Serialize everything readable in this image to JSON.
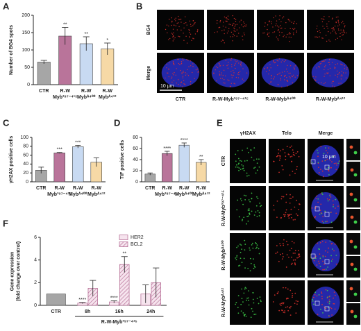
{
  "chart_data": [
    {
      "type": "bar",
      "panel": "A",
      "ylabel": [
        "Number of BG4 spots"
      ],
      "categories": [
        "CTR",
        [
          "R₇W",
          "Myb³⁹⁷⁻⁴¹⁵"
        ],
        [
          "R₇W",
          "Mybᴬ⁴⁰⁰"
        ],
        [
          "R₇W",
          "Mybᴬ⁴¹²"
        ]
      ],
      "values": [
        65,
        140,
        118,
        103
      ],
      "errors": [
        5,
        25,
        20,
        17
      ],
      "annotations": [
        null,
        "**",
        "**",
        "*"
      ],
      "colors": [
        "#a6a6a6",
        "#b9749a",
        "#c8daf2",
        "#f6d9a6"
      ],
      "ylim": [
        0,
        200
      ],
      "yticks": [
        0,
        50,
        100,
        150,
        200
      ]
    },
    {
      "type": "bar",
      "panel": "C",
      "ylabel": [
        "γH2AX positive cells"
      ],
      "categories": [
        "CTR",
        [
          "R₇W",
          "Myb³⁹⁷⁻⁴¹⁵"
        ],
        [
          "R₇W",
          "Mybᴬ⁴⁰⁰"
        ],
        [
          "R₇W",
          "Mybᴬ⁴¹²"
        ]
      ],
      "values": [
        26,
        65,
        79,
        44
      ],
      "errors": [
        7,
        1,
        3,
        10
      ],
      "annotations": [
        null,
        "***",
        "***",
        null
      ],
      "colors": [
        "#a6a6a6",
        "#b9749a",
        "#c8daf2",
        "#f6d9a6"
      ],
      "ylim": [
        0,
        100
      ],
      "yticks": [
        0,
        20,
        40,
        60,
        80,
        100
      ]
    },
    {
      "type": "bar",
      "panel": "D",
      "ylabel": [
        "TIF positive cells"
      ],
      "categories": [
        "CTR",
        [
          "R₇W",
          "Myb³⁹⁷⁻⁴¹⁵"
        ],
        [
          "R₇W",
          "Mybᴬ⁴⁰⁰"
        ],
        [
          "R₇W",
          "Mybᴬ⁴¹²"
        ]
      ],
      "values": [
        14,
        51,
        66,
        35
      ],
      "errors": [
        2,
        4,
        4,
        5
      ],
      "annotations": [
        null,
        "****",
        "****",
        "**"
      ],
      "colors": [
        "#a6a6a6",
        "#b9749a",
        "#c8daf2",
        "#f6d9a6"
      ],
      "ylim": [
        0,
        80
      ],
      "yticks": [
        0,
        20,
        40,
        60,
        80
      ]
    },
    {
      "type": "bar",
      "panel": "F",
      "ylabel": [
        "Gene expression",
        "(fold change over control)"
      ],
      "categories": [
        "CTR",
        "8h",
        "16h",
        "24h"
      ],
      "group_label": "R₇W-Myb³⁹⁷⁻⁴¹⁵",
      "values": [
        1,
        null,
        null,
        null
      ],
      "colors": [
        "#a6a6a6",
        null,
        null,
        null
      ],
      "series": [
        {
          "name": "HER2",
          "color": "#b9749a",
          "hatch": false,
          "values": [
            null,
            0.2,
            0.3,
            1.0
          ],
          "errors": [
            null,
            0.05,
            0.1,
            0.8
          ],
          "annotations": [
            null,
            "****",
            "****",
            null
          ]
        },
        {
          "name": "BCL2",
          "color": "#b9749a",
          "hatch": true,
          "values": [
            null,
            1.5,
            3.6,
            2.0
          ],
          "errors": [
            null,
            0.7,
            0.7,
            1.3
          ],
          "annotations": [
            null,
            null,
            "**",
            null
          ]
        }
      ],
      "ylim": [
        0,
        6
      ],
      "yticks": [
        0,
        2,
        4,
        6
      ]
    }
  ],
  "panels": {
    "B": {
      "label": "B",
      "row_labels": [
        "BG4",
        "Merge"
      ],
      "col_labels": [
        "CTR",
        "R₇W-Myb³⁹⁷⁻⁴¹⁵",
        "R₇W-Mybᴬ⁴⁰⁰",
        "R₇W-Mybᴬ⁴¹²"
      ],
      "scale_bar": "10 μm"
    },
    "E": {
      "label": "E",
      "col_labels": [
        "γH2AX",
        "Telo",
        "Merge"
      ],
      "row_labels": [
        "CTR",
        "R₇W-Myb³⁹⁷⁻⁴¹⁵",
        "R₇W-Mybᴬ⁴⁰⁰",
        "R₇W-Mybᴬ⁴¹²"
      ],
      "scale_bar": "10 μm"
    }
  }
}
